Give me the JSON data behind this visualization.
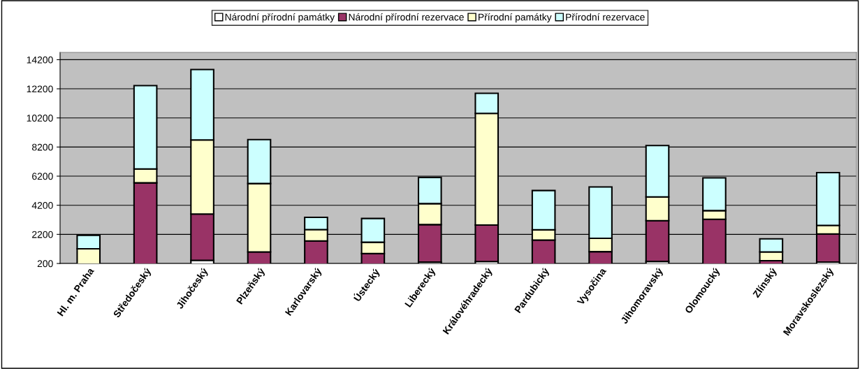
{
  "chart_data": {
    "type": "bar",
    "stacked": true,
    "categories": [
      "Hl. m. Praha",
      "Středočeský",
      "Jihočeský",
      "Plzeňský",
      "Karlovarský",
      "Ústecký",
      "Liberecký",
      "Královéhradecký",
      "Pardubický",
      "Vysočina",
      "Jihomoravský",
      "Olomoucký",
      "Zlínský",
      "Moravskoslezský"
    ],
    "series": [
      {
        "name": "Národní přírodní památky",
        "color": "#ffffff",
        "values": [
          null,
          null,
          420,
          null,
          null,
          null,
          290,
          330,
          null,
          null,
          340,
          null,
          null,
          300
        ]
      },
      {
        "name": "Národní přírodní rezervace",
        "color": "#993366",
        "values": [
          null,
          5740,
          3180,
          990,
          1750,
          880,
          2580,
          2510,
          1810,
          1010,
          2800,
          3240,
          390,
          1930
        ]
      },
      {
        "name": "Přírodní památky",
        "color": "#ffffcc",
        "values": [
          1210,
          950,
          5090,
          4700,
          780,
          780,
          1440,
          7670,
          700,
          920,
          1630,
          590,
          600,
          590
        ]
      },
      {
        "name": "Přírodní rezervace",
        "color": "#ccffff",
        "values": [
          920,
          5730,
          4830,
          3020,
          840,
          1630,
          1800,
          1380,
          2700,
          3530,
          3530,
          2250,
          900,
          3620
        ]
      }
    ],
    "ylim": [
      200,
      14700
    ],
    "yticks": [
      200,
      2200,
      4200,
      6200,
      8200,
      10200,
      12200,
      14200
    ],
    "grid": "y",
    "legend": "top"
  }
}
